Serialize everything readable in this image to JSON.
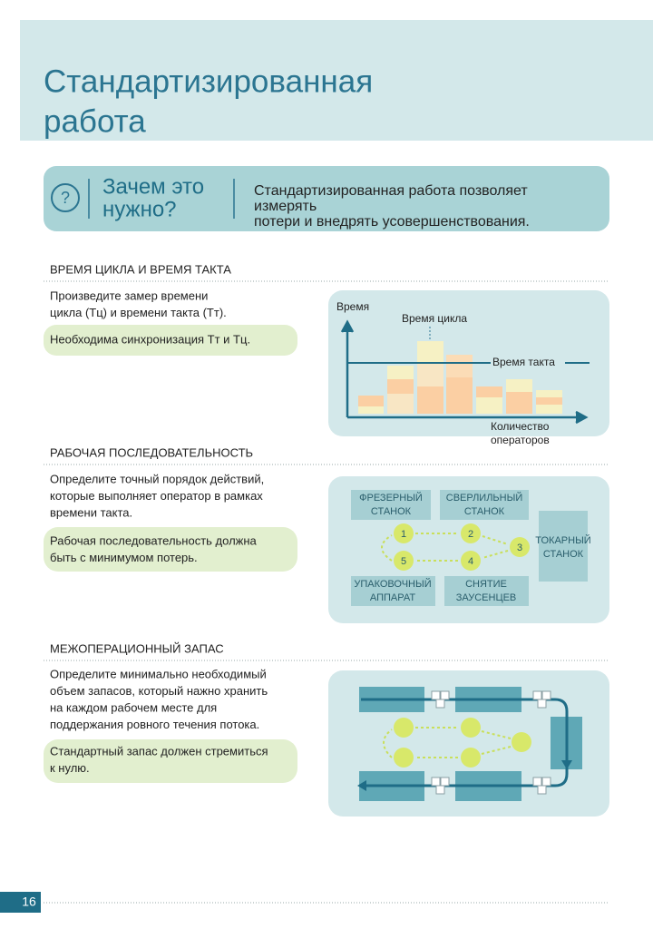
{
  "header": {
    "title_lines": [
      "Стандартизированная",
      "работа"
    ]
  },
  "why": {
    "icon": "?",
    "question_lines": [
      "Зачем это",
      "нужно?"
    ],
    "answer_lines": [
      "Стандартизированная работа позволяет",
      "измерять",
      "потери и внедрять усовершенствования."
    ]
  },
  "sections": [
    {
      "heading": "ВРЕМЯ ЦИКЛА И ВРЕМЯ ТАКТА",
      "text_lines": [
        "Произведите замер времени",
        "цикла (Тц) и времени такта (Тт)."
      ],
      "note_lines": [
        "Необходима синхронизация Тт и Тц."
      ],
      "diagram": {
        "y_axis": "Время",
        "cycle": "Время цикла",
        "takt": "Время такта",
        "x_axis_lines": [
          "Количество",
          "операторов"
        ]
      }
    },
    {
      "heading": "РАБОЧАЯ ПОСЛЕДОВАТЕЛЬНОСТЬ",
      "text_lines": [
        "Определите точный порядок действий,",
        "которые выполняет оператор в рамках",
        "времени такта."
      ],
      "note_lines": [
        "Рабочая последовательность должна",
        "быть с минимумом потерь."
      ],
      "diagram": {
        "stations": [
          {
            "lines": [
              "ФРЕЗЕРНЫЙ",
              "СТАНОК"
            ]
          },
          {
            "lines": [
              "СВЕРЛИЛЬНЫЙ",
              "СТАНОК"
            ]
          },
          {
            "lines": [
              "ТОКАРНЫЙ",
              "СТАНОК"
            ]
          },
          {
            "lines": [
              "УПАКОВОЧНЫЙ",
              "АППАРАТ"
            ]
          },
          {
            "lines": [
              "СНЯТИЕ",
              "ЗАУСЕНЦЕВ"
            ]
          }
        ],
        "steps": [
          "1",
          "2",
          "3",
          "4",
          "5"
        ]
      }
    },
    {
      "heading": "МЕЖОПЕРАЦИОННЫЙ ЗАПАС",
      "text_lines": [
        "Определите минимально необходимый",
        "объем запасов, который нажно хранить",
        "на каждом рабочем месте для",
        "поддержания ровного течения потока."
      ],
      "note_lines": [
        "Стандартный запас должен стремиться",
        "к нулю."
      ]
    }
  ],
  "page_number": "16"
}
